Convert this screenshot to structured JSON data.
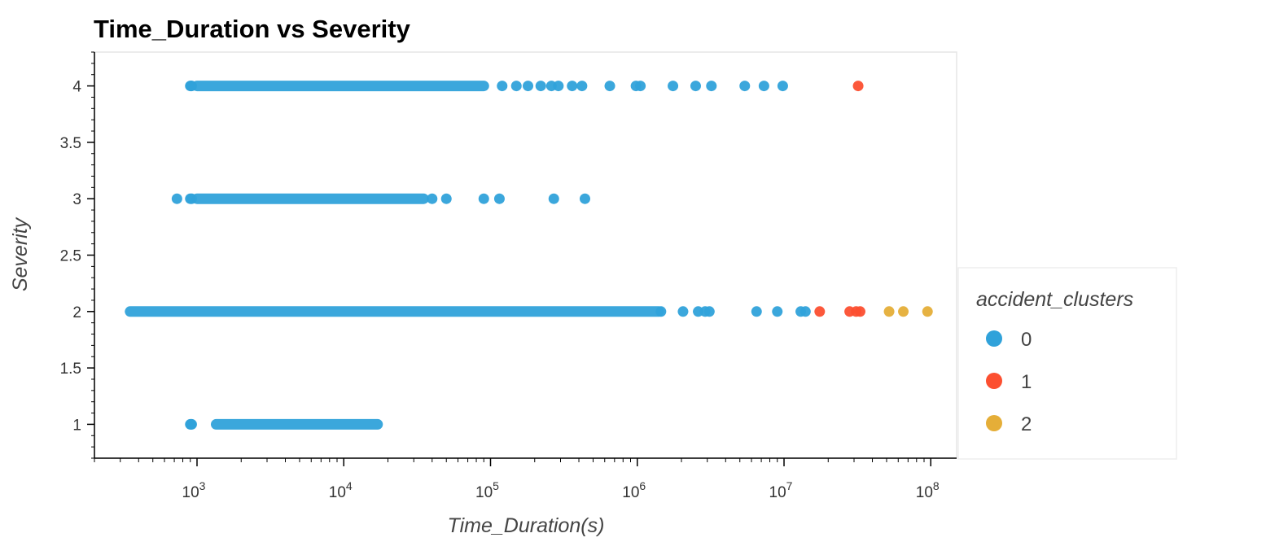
{
  "chart_data": {
    "type": "scatter",
    "title": "Time_Duration vs Severity",
    "xlabel": "Time_Duration(s)",
    "ylabel": "Severity",
    "x_scale": "log",
    "xlim": [
      200,
      150000000
    ],
    "ylim": [
      0.7,
      4.3
    ],
    "x_ticks": [
      {
        "value": 1000,
        "base": "10",
        "exp": "3"
      },
      {
        "value": 10000,
        "base": "10",
        "exp": "4"
      },
      {
        "value": 100000,
        "base": "10",
        "exp": "5"
      },
      {
        "value": 1000000,
        "base": "10",
        "exp": "6"
      },
      {
        "value": 10000000,
        "base": "10",
        "exp": "7"
      },
      {
        "value": 100000000,
        "base": "10",
        "exp": "8"
      }
    ],
    "y_ticks": [
      {
        "value": 1,
        "label": "1"
      },
      {
        "value": 1.5,
        "label": "1.5"
      },
      {
        "value": 2,
        "label": "2"
      },
      {
        "value": 2.5,
        "label": "2.5"
      },
      {
        "value": 3,
        "label": "3"
      },
      {
        "value": 3.5,
        "label": "3.5"
      },
      {
        "value": 4,
        "label": "4"
      }
    ],
    "grid": false,
    "legend": {
      "title": "accident_clusters",
      "placement": "right",
      "entries": [
        {
          "label": "0",
          "color": "#30a2da"
        },
        {
          "label": "1",
          "color": "#fc4f30"
        },
        {
          "label": "2",
          "color": "#e5ae38"
        }
      ]
    },
    "series": [
      {
        "cluster": "0",
        "color": "#30a2da",
        "dense_ranges": [
          {
            "y": 4,
            "x_min": 1000,
            "x_max": 90000
          },
          {
            "y": 3,
            "x_min": 1000,
            "x_max": 35000
          },
          {
            "y": 2,
            "x_min": 350,
            "x_max": 1400000
          },
          {
            "y": 1,
            "x_min": 1350,
            "x_max": 17000
          }
        ],
        "points": [
          {
            "x": 900,
            "y": 4
          },
          {
            "x": 910,
            "y": 4
          },
          {
            "x": 920,
            "y": 4
          },
          {
            "x": 120000,
            "y": 4
          },
          {
            "x": 150000,
            "y": 4
          },
          {
            "x": 180000,
            "y": 4
          },
          {
            "x": 220000,
            "y": 4
          },
          {
            "x": 260000,
            "y": 4
          },
          {
            "x": 290000,
            "y": 4
          },
          {
            "x": 360000,
            "y": 4
          },
          {
            "x": 420000,
            "y": 4
          },
          {
            "x": 650000,
            "y": 4
          },
          {
            "x": 980000,
            "y": 4
          },
          {
            "x": 1050000,
            "y": 4
          },
          {
            "x": 1750000,
            "y": 4
          },
          {
            "x": 2500000,
            "y": 4
          },
          {
            "x": 3200000,
            "y": 4
          },
          {
            "x": 5400000,
            "y": 4
          },
          {
            "x": 7300000,
            "y": 4
          },
          {
            "x": 9800000,
            "y": 4
          },
          {
            "x": 730,
            "y": 3
          },
          {
            "x": 900,
            "y": 3
          },
          {
            "x": 920,
            "y": 3
          },
          {
            "x": 40000,
            "y": 3
          },
          {
            "x": 50000,
            "y": 3
          },
          {
            "x": 90000,
            "y": 3
          },
          {
            "x": 115000,
            "y": 3
          },
          {
            "x": 270000,
            "y": 3
          },
          {
            "x": 440000,
            "y": 3
          },
          {
            "x": 1450000,
            "y": 2
          },
          {
            "x": 2050000,
            "y": 2
          },
          {
            "x": 2600000,
            "y": 2
          },
          {
            "x": 2900000,
            "y": 2
          },
          {
            "x": 3100000,
            "y": 2
          },
          {
            "x": 6500000,
            "y": 2
          },
          {
            "x": 9000000,
            "y": 2
          },
          {
            "x": 13000000,
            "y": 2
          },
          {
            "x": 14000000,
            "y": 2
          },
          {
            "x": 900,
            "y": 1
          },
          {
            "x": 910,
            "y": 1
          },
          {
            "x": 920,
            "y": 1
          }
        ]
      },
      {
        "cluster": "1",
        "color": "#fc4f30",
        "points": [
          {
            "x": 32000000,
            "y": 4
          },
          {
            "x": 17500000,
            "y": 2
          },
          {
            "x": 28000000,
            "y": 2
          },
          {
            "x": 31000000,
            "y": 2
          },
          {
            "x": 33000000,
            "y": 2
          }
        ]
      },
      {
        "cluster": "2",
        "color": "#e5ae38",
        "points": [
          {
            "x": 52000000,
            "y": 2
          },
          {
            "x": 65000000,
            "y": 2
          },
          {
            "x": 95000000,
            "y": 2
          }
        ]
      }
    ]
  }
}
